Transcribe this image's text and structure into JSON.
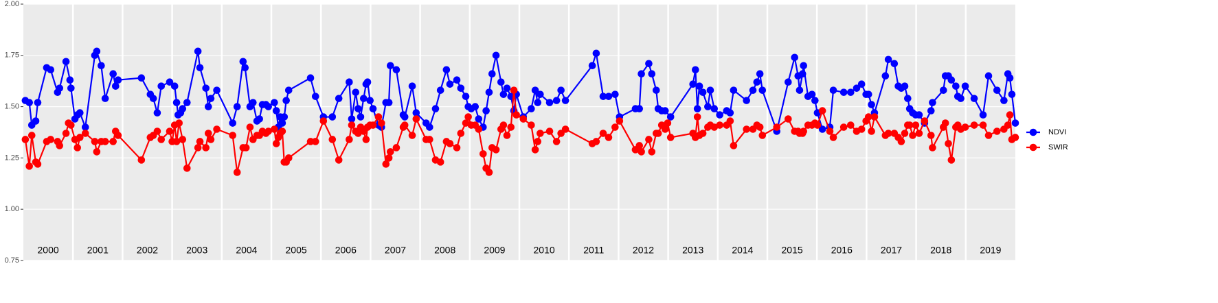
{
  "chart_data": {
    "type": "line",
    "xlim": [
      2000,
      2020
    ],
    "ylim": [
      0.75,
      2.0
    ],
    "yticks": [
      0.75,
      {
        "value": 1.0,
        "label": "1.00"
      },
      1.25,
      {
        "value": 1.5,
        "label": "1.50"
      },
      1.75,
      {
        "value": 2.0,
        "label": "2.00"
      }
    ],
    "xticks": [
      {
        "value": 2000.5,
        "label": "2000"
      },
      {
        "value": 2001.5,
        "label": "2001"
      },
      {
        "value": 2002.5,
        "label": "2002"
      },
      {
        "value": 2003.5,
        "label": "2003"
      },
      {
        "value": 2004.5,
        "label": "2004"
      },
      {
        "value": 2005.5,
        "label": "2005"
      },
      {
        "value": 2006.5,
        "label": "2006"
      },
      {
        "value": 2007.5,
        "label": "2007"
      },
      {
        "value": 2008.5,
        "label": "2008"
      },
      {
        "value": 2009.5,
        "label": "2009"
      },
      {
        "value": 2010.5,
        "label": "2010"
      },
      {
        "value": 2011.5,
        "label": "2011"
      },
      {
        "value": 2012.5,
        "label": "2012"
      },
      {
        "value": 2013.5,
        "label": "2013"
      },
      {
        "value": 2014.5,
        "label": "2014"
      },
      {
        "value": 2015.5,
        "label": "2015"
      },
      {
        "value": 2016.5,
        "label": "2016"
      },
      {
        "value": 2017.5,
        "label": "2017"
      },
      {
        "value": 2018.5,
        "label": "2018"
      },
      {
        "value": 2019.5,
        "label": "2019"
      }
    ],
    "year_separators": [
      2001,
      2002,
      2003,
      2004,
      2005,
      2006,
      2007,
      2008,
      2009,
      2010,
      2011,
      2012,
      2013,
      2014,
      2015,
      2016,
      2017,
      2018,
      2019
    ],
    "grid": true,
    "legend": "right",
    "series": [
      {
        "name": "NDVI",
        "color": "#0000ff",
        "x": [
          2000.04,
          2000.12,
          2000.17,
          2000.25,
          2000.29,
          2000.47,
          2000.55,
          2000.69,
          2000.73,
          2000.86,
          2000.94,
          2000.96,
          2001.04,
          2001.09,
          2001.14,
          2001.25,
          2001.44,
          2001.48,
          2001.57,
          2001.65,
          2001.81,
          2001.86,
          2001.91,
          2002.38,
          2002.56,
          2002.62,
          2002.7,
          2002.78,
          2002.95,
          2003.05,
          2003.09,
          2003.12,
          2003.17,
          2003.21,
          2003.3,
          2003.52,
          2003.56,
          2003.68,
          2003.73,
          2003.78,
          2003.9,
          2004.22,
          2004.31,
          2004.43,
          2004.47,
          2004.57,
          2004.63,
          2004.71,
          2004.76,
          2004.82,
          2004.89,
          2004.94,
          2005.06,
          2005.1,
          2005.14,
          2005.18,
          2005.22,
          2005.26,
          2005.3,
          2005.35,
          2005.79,
          2005.89,
          2006.05,
          2006.23,
          2006.36,
          2006.57,
          2006.62,
          2006.7,
          2006.75,
          2006.8,
          2006.86,
          2006.91,
          2006.94,
          2006.99,
          2007.05,
          2007.16,
          2007.22,
          2007.31,
          2007.37,
          2007.4,
          2007.52,
          2007.66,
          2007.69,
          2007.84,
          2007.92,
          2008.12,
          2008.19,
          2008.31,
          2008.41,
          2008.53,
          2008.6,
          2008.74,
          2008.82,
          2008.92,
          2008.97,
          2009.03,
          2009.11,
          2009.18,
          2009.27,
          2009.33,
          2009.39,
          2009.45,
          2009.53,
          2009.63,
          2009.68,
          2009.75,
          2009.83,
          2009.89,
          2009.94,
          2010.08,
          2010.24,
          2010.32,
          2010.37,
          2010.42,
          2010.61,
          2010.75,
          2010.84,
          2010.93,
          2011.47,
          2011.55,
          2011.69,
          2011.8,
          2011.93,
          2012.02,
          2012.34,
          2012.42,
          2012.46,
          2012.61,
          2012.67,
          2012.76,
          2012.8,
          2012.87,
          2012.94,
          2013.05,
          2013.5,
          2013.55,
          2013.59,
          2013.63,
          2013.7,
          2013.8,
          2013.85,
          2013.93,
          2014.04,
          2014.18,
          2014.25,
          2014.32,
          2014.58,
          2014.71,
          2014.79,
          2014.85,
          2014.9,
          2015.19,
          2015.42,
          2015.55,
          2015.62,
          2015.65,
          2015.71,
          2015.73,
          2015.82,
          2015.9,
          2015.96,
          2016.01,
          2016.11,
          2016.26,
          2016.33,
          2016.54,
          2016.68,
          2016.8,
          2016.9,
          2016.99,
          2017.04,
          2017.1,
          2017.16,
          2017.38,
          2017.44,
          2017.56,
          2017.64,
          2017.7,
          2017.77,
          2017.83,
          2017.87,
          2017.93,
          2017.99,
          2018.06,
          2018.17,
          2018.3,
          2018.33,
          2018.55,
          2018.59,
          2018.65,
          2018.71,
          2018.8,
          2018.84,
          2018.9,
          2018.99,
          2019.17,
          2019.35,
          2019.46,
          2019.63,
          2019.77,
          2019.85,
          2019.89,
          2019.93,
          2020.0
        ],
        "values": [
          1.53,
          1.52,
          1.41,
          1.43,
          1.52,
          1.69,
          1.68,
          1.57,
          1.59,
          1.72,
          1.63,
          1.59,
          1.44,
          1.46,
          1.47,
          1.4,
          1.75,
          1.77,
          1.7,
          1.54,
          1.66,
          1.6,
          1.63,
          1.64,
          1.56,
          1.54,
          1.47,
          1.6,
          1.62,
          1.6,
          1.52,
          1.46,
          1.47,
          1.49,
          1.52,
          1.77,
          1.69,
          1.59,
          1.5,
          1.54,
          1.58,
          1.42,
          1.5,
          1.72,
          1.69,
          1.5,
          1.52,
          1.43,
          1.44,
          1.51,
          1.51,
          1.5,
          1.52,
          1.48,
          1.4,
          1.45,
          1.42,
          1.45,
          1.53,
          1.58,
          1.64,
          1.55,
          1.45,
          1.45,
          1.54,
          1.62,
          1.44,
          1.57,
          1.49,
          1.45,
          1.54,
          1.61,
          1.62,
          1.53,
          1.49,
          1.41,
          1.4,
          1.52,
          1.52,
          1.7,
          1.68,
          1.46,
          1.45,
          1.6,
          1.47,
          1.42,
          1.4,
          1.49,
          1.58,
          1.68,
          1.61,
          1.63,
          1.59,
          1.55,
          1.5,
          1.49,
          1.5,
          1.44,
          1.4,
          1.48,
          1.57,
          1.66,
          1.75,
          1.62,
          1.56,
          1.59,
          1.55,
          1.48,
          1.56,
          1.45,
          1.49,
          1.58,
          1.52,
          1.56,
          1.52,
          1.53,
          1.58,
          1.53,
          1.7,
          1.76,
          1.55,
          1.55,
          1.56,
          1.45,
          1.49,
          1.49,
          1.66,
          1.71,
          1.66,
          1.58,
          1.49,
          1.48,
          1.48,
          1.45,
          1.61,
          1.68,
          1.49,
          1.6,
          1.57,
          1.5,
          1.58,
          1.49,
          1.46,
          1.48,
          1.47,
          1.58,
          1.53,
          1.58,
          1.62,
          1.66,
          1.58,
          1.38,
          1.62,
          1.74,
          1.65,
          1.58,
          1.66,
          1.7,
          1.55,
          1.56,
          1.53,
          1.47,
          1.39,
          1.4,
          1.58,
          1.57,
          1.57,
          1.59,
          1.61,
          1.56,
          1.56,
          1.51,
          1.47,
          1.65,
          1.73,
          1.71,
          1.6,
          1.59,
          1.6,
          1.54,
          1.49,
          1.47,
          1.46,
          1.46,
          1.42,
          1.48,
          1.52,
          1.58,
          1.65,
          1.65,
          1.63,
          1.6,
          1.55,
          1.54,
          1.6,
          1.54,
          1.46,
          1.65,
          1.58,
          1.53,
          1.66,
          1.64,
          1.56,
          1.42
        ]
      },
      {
        "name": "SWIR",
        "color": "#ff0000",
        "x": [
          2000.04,
          2000.12,
          2000.17,
          2000.25,
          2000.29,
          2000.47,
          2000.55,
          2000.69,
          2000.73,
          2000.86,
          2000.91,
          2000.96,
          2001.04,
          2001.09,
          2001.14,
          2001.25,
          2001.44,
          2001.48,
          2001.57,
          2001.65,
          2001.81,
          2001.86,
          2001.91,
          2002.38,
          2002.56,
          2002.62,
          2002.7,
          2002.78,
          2002.95,
          2003.0,
          2003.05,
          2003.09,
          2003.14,
          2003.21,
          2003.3,
          2003.52,
          2003.56,
          2003.68,
          2003.73,
          2003.78,
          2003.9,
          2004.22,
          2004.31,
          2004.43,
          2004.49,
          2004.57,
          2004.63,
          2004.71,
          2004.76,
          2004.82,
          2004.89,
          2004.94,
          2005.06,
          2005.1,
          2005.14,
          2005.18,
          2005.22,
          2005.26,
          2005.3,
          2005.35,
          2005.79,
          2005.89,
          2006.05,
          2006.23,
          2006.36,
          2006.57,
          2006.62,
          2006.7,
          2006.75,
          2006.8,
          2006.86,
          2006.91,
          2006.94,
          2006.99,
          2007.05,
          2007.16,
          2007.22,
          2007.31,
          2007.37,
          2007.4,
          2007.52,
          2007.66,
          2007.69,
          2007.84,
          2007.92,
          2008.12,
          2008.19,
          2008.31,
          2008.41,
          2008.53,
          2008.6,
          2008.74,
          2008.82,
          2008.92,
          2008.97,
          2009.03,
          2009.11,
          2009.18,
          2009.27,
          2009.33,
          2009.39,
          2009.45,
          2009.53,
          2009.63,
          2009.68,
          2009.75,
          2009.83,
          2009.89,
          2009.94,
          2010.08,
          2010.24,
          2010.32,
          2010.37,
          2010.42,
          2010.61,
          2010.75,
          2010.84,
          2010.93,
          2011.47,
          2011.55,
          2011.69,
          2011.8,
          2011.93,
          2012.02,
          2012.34,
          2012.42,
          2012.46,
          2012.61,
          2012.67,
          2012.76,
          2012.8,
          2012.87,
          2012.94,
          2012.99,
          2013.05,
          2013.5,
          2013.55,
          2013.59,
          2013.63,
          2013.7,
          2013.8,
          2013.85,
          2013.93,
          2014.04,
          2014.18,
          2014.25,
          2014.32,
          2014.58,
          2014.71,
          2014.79,
          2014.85,
          2014.9,
          2015.19,
          2015.42,
          2015.55,
          2015.62,
          2015.65,
          2015.71,
          2015.73,
          2015.82,
          2015.9,
          2015.96,
          2016.01,
          2016.11,
          2016.26,
          2016.33,
          2016.54,
          2016.68,
          2016.8,
          2016.9,
          2016.99,
          2017.04,
          2017.1,
          2017.16,
          2017.38,
          2017.44,
          2017.56,
          2017.64,
          2017.7,
          2017.77,
          2017.83,
          2017.87,
          2017.93,
          2017.99,
          2018.06,
          2018.17,
          2018.3,
          2018.33,
          2018.55,
          2018.59,
          2018.65,
          2018.71,
          2018.8,
          2018.84,
          2018.9,
          2018.99,
          2019.17,
          2019.35,
          2019.46,
          2019.63,
          2019.77,
          2019.85,
          2019.89,
          2019.93,
          2020.0
        ],
        "values": [
          1.34,
          1.21,
          1.36,
          1.23,
          1.22,
          1.33,
          1.34,
          1.33,
          1.31,
          1.37,
          1.42,
          1.41,
          1.34,
          1.3,
          1.35,
          1.37,
          1.33,
          1.28,
          1.33,
          1.33,
          1.33,
          1.38,
          1.36,
          1.24,
          1.35,
          1.36,
          1.38,
          1.34,
          1.38,
          1.33,
          1.41,
          1.33,
          1.42,
          1.34,
          1.2,
          1.3,
          1.33,
          1.3,
          1.37,
          1.34,
          1.39,
          1.36,
          1.18,
          1.3,
          1.3,
          1.4,
          1.34,
          1.36,
          1.36,
          1.38,
          1.37,
          1.38,
          1.39,
          1.32,
          1.35,
          1.37,
          1.38,
          1.23,
          1.23,
          1.25,
          1.33,
          1.33,
          1.43,
          1.34,
          1.24,
          1.34,
          1.41,
          1.38,
          1.37,
          1.4,
          1.38,
          1.34,
          1.4,
          1.41,
          1.41,
          1.45,
          1.42,
          1.22,
          1.25,
          1.28,
          1.3,
          1.4,
          1.41,
          1.36,
          1.44,
          1.34,
          1.34,
          1.24,
          1.23,
          1.33,
          1.32,
          1.3,
          1.37,
          1.42,
          1.45,
          1.41,
          1.41,
          1.39,
          1.27,
          1.2,
          1.18,
          1.3,
          1.29,
          1.39,
          1.41,
          1.36,
          1.4,
          1.58,
          1.46,
          1.44,
          1.41,
          1.29,
          1.33,
          1.37,
          1.38,
          1.33,
          1.37,
          1.39,
          1.32,
          1.33,
          1.37,
          1.35,
          1.4,
          1.43,
          1.29,
          1.31,
          1.28,
          1.34,
          1.28,
          1.37,
          1.37,
          1.41,
          1.39,
          1.42,
          1.35,
          1.37,
          1.35,
          1.45,
          1.36,
          1.37,
          1.4,
          1.41,
          1.4,
          1.41,
          1.41,
          1.43,
          1.31,
          1.39,
          1.39,
          1.41,
          1.4,
          1.36,
          1.4,
          1.44,
          1.38,
          1.38,
          1.37,
          1.37,
          1.38,
          1.41,
          1.41,
          1.42,
          1.41,
          1.48,
          1.38,
          1.35,
          1.4,
          1.41,
          1.38,
          1.39,
          1.43,
          1.45,
          1.38,
          1.45,
          1.36,
          1.37,
          1.37,
          1.35,
          1.33,
          1.37,
          1.41,
          1.41,
          1.36,
          1.41,
          1.37,
          1.43,
          1.36,
          1.3,
          1.4,
          1.42,
          1.32,
          1.24,
          1.4,
          1.41,
          1.39,
          1.4,
          1.41,
          1.41,
          1.36,
          1.38,
          1.39,
          1.41,
          1.46,
          1.34,
          1.35
        ]
      }
    ]
  }
}
